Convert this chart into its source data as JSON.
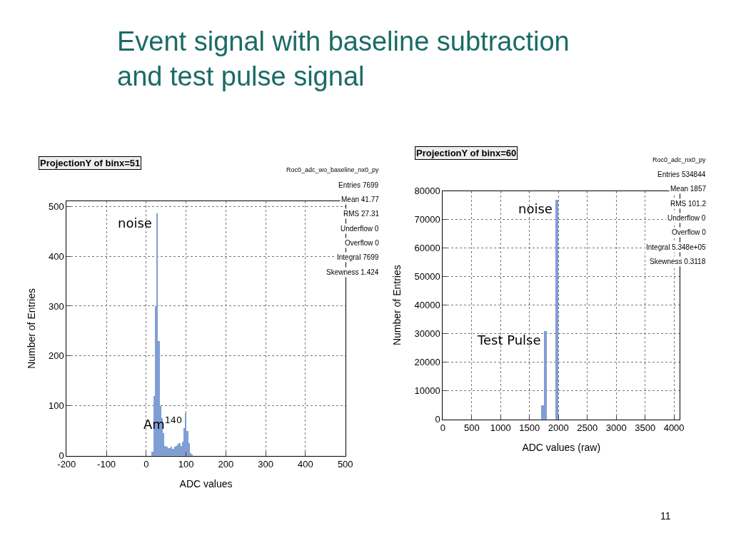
{
  "chart_data": [
    {
      "type": "histogram",
      "title": "Event signal with baseline subtraction and test pulse signal",
      "subtitle": "ProjectionY of binx=51",
      "xlabel": "ADC values",
      "ylabel": "Number of Entries",
      "bins": [
        14,
        18,
        22,
        26,
        30,
        34,
        38,
        42,
        46,
        50,
        54,
        58,
        62,
        66,
        70,
        74,
        78,
        82,
        86,
        90,
        94,
        98,
        102,
        106,
        110,
        114,
        118
      ],
      "values": [
        8,
        120,
        300,
        485,
        230,
        100,
        75,
        45,
        20,
        18,
        16,
        15,
        18,
        14,
        18,
        20,
        22,
        25,
        20,
        28,
        55,
        85,
        50,
        25,
        5,
        2
      ],
      "color": "#7f9ed4",
      "xlim": [
        -200,
        500
      ],
      "xticks": [
        -200,
        -100,
        0,
        100,
        200,
        300,
        400,
        500
      ],
      "ylim": [
        0,
        510
      ],
      "yticks": [
        0,
        100,
        200,
        300,
        400,
        500
      ],
      "grid": true,
      "annotations": [
        {
          "text": "noise",
          "x": 26,
          "y": 485
        },
        {
          "text": "Am$^{140}$",
          "x": 100,
          "y": 85
        },
        "Roc0_adc_wo_baseline_nx0_py",
        "Entries 7699",
        "Mean 41.77",
        "RMS 27.31",
        "Underflow 0",
        "Overflow 0",
        "Integral 7699",
        "Skewness 1.424"
      ]
    },
    {
      "type": "histogram",
      "title": "ProjectionY of binx=60",
      "xlabel": "ADC values (raw)",
      "ylabel": "Number of Entries",
      "bins": [
        1700,
        1750,
        1800,
        1850,
        1900,
        1950,
        2000
      ],
      "values": [
        5000,
        31000,
        0,
        0,
        0,
        77000
      ],
      "color": "#7f9ed4",
      "xlim": [
        0,
        4100
      ],
      "xticks": [
        0,
        500,
        1000,
        1500,
        2000,
        2500,
        3000,
        3500,
        4000
      ],
      "ylim": [
        0,
        80000
      ],
      "yticks": [
        0,
        10000,
        20000,
        30000,
        40000,
        50000,
        60000,
        70000,
        80000
      ],
      "grid": true,
      "annotations": [
        {
          "text": "Test Pulse",
          "x": 1775,
          "y": 31000
        },
        {
          "text": "noise",
          "x": 1975,
          "y": 77000
        },
        "Roc0_adc_nx0_py",
        "Entries 534844",
        "Mean 1857",
        "RMS 101.2",
        "Underflow 0",
        "Overflow 0",
        "Integral 5.348e+05",
        "Skewness 0.3118",
        "11"
      ]
    }
  ]
}
